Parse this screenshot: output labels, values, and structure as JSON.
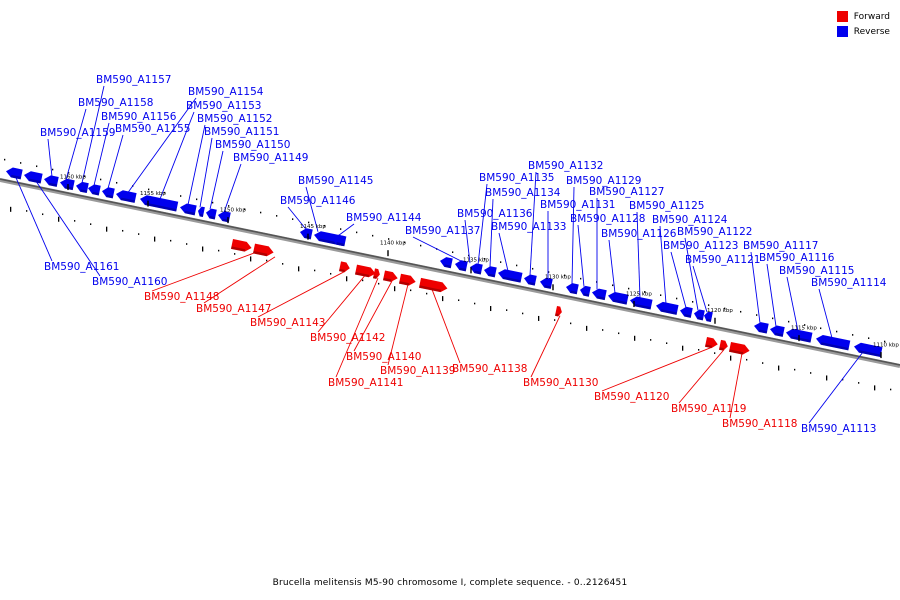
{
  "colors": {
    "forward": "#ee0000",
    "reverse": "#0000ee",
    "line": "#555555"
  },
  "legend": [
    {
      "label": "Forward",
      "color": "#ee0000"
    },
    {
      "label": "Reverse",
      "color": "#0000ee"
    }
  ],
  "caption": "Brucella melitensis M5-90 chromosome I, complete sequence. - 0..2126451",
  "scale_labels": [
    "1160 kbp",
    "1155 kbp",
    "1150 kbp",
    "1145 kbp",
    "1140 kbp",
    "1135 kbp",
    "1130 kbp",
    "1125 kbp",
    "1120 kbp",
    "1115 kbp",
    "1110 kbp"
  ],
  "genes": [
    {
      "name": "BM590_A1161",
      "strand": "reverse"
    },
    {
      "name": "BM590_A1160",
      "strand": "reverse"
    },
    {
      "name": "BM590_A1159",
      "strand": "reverse"
    },
    {
      "name": "BM590_A1158",
      "strand": "reverse"
    },
    {
      "name": "BM590_A1157",
      "strand": "reverse"
    },
    {
      "name": "BM590_A1156",
      "strand": "reverse"
    },
    {
      "name": "BM590_A1155",
      "strand": "reverse"
    },
    {
      "name": "BM590_A1154",
      "strand": "reverse"
    },
    {
      "name": "BM590_A1153",
      "strand": "reverse"
    },
    {
      "name": "BM590_A1152",
      "strand": "reverse"
    },
    {
      "name": "BM590_A1151",
      "strand": "reverse"
    },
    {
      "name": "BM590_A1150",
      "strand": "reverse"
    },
    {
      "name": "BM590_A1149",
      "strand": "reverse"
    },
    {
      "name": "BM590_A1148",
      "strand": "forward"
    },
    {
      "name": "BM590_A1147",
      "strand": "forward"
    },
    {
      "name": "BM590_A1146",
      "strand": "reverse"
    },
    {
      "name": "BM590_A1145",
      "strand": "reverse"
    },
    {
      "name": "BM590_A1144",
      "strand": "reverse"
    },
    {
      "name": "BM590_A1143",
      "strand": "forward"
    },
    {
      "name": "BM590_A1142",
      "strand": "forward"
    },
    {
      "name": "BM590_A1141",
      "strand": "forward"
    },
    {
      "name": "BM590_A1140",
      "strand": "forward"
    },
    {
      "name": "BM590_A1139",
      "strand": "forward"
    },
    {
      "name": "BM590_A1138",
      "strand": "forward"
    },
    {
      "name": "BM590_A1137",
      "strand": "reverse"
    },
    {
      "name": "BM590_A1136",
      "strand": "reverse"
    },
    {
      "name": "BM590_A1135",
      "strand": "reverse"
    },
    {
      "name": "BM590_A1134",
      "strand": "reverse"
    },
    {
      "name": "BM590_A1133",
      "strand": "reverse"
    },
    {
      "name": "BM590_A1132",
      "strand": "reverse"
    },
    {
      "name": "BM590_A1131",
      "strand": "reverse"
    },
    {
      "name": "BM590_A1130",
      "strand": "forward"
    },
    {
      "name": "BM590_A1129",
      "strand": "reverse"
    },
    {
      "name": "BM590_A1128",
      "strand": "reverse"
    },
    {
      "name": "BM590_A1127",
      "strand": "reverse"
    },
    {
      "name": "BM590_A1126",
      "strand": "reverse"
    },
    {
      "name": "BM590_A1125",
      "strand": "reverse"
    },
    {
      "name": "BM590_A1124",
      "strand": "reverse"
    },
    {
      "name": "BM590_A1123",
      "strand": "reverse"
    },
    {
      "name": "BM590_A1122",
      "strand": "reverse"
    },
    {
      "name": "BM590_A1121",
      "strand": "reverse"
    },
    {
      "name": "BM590_A1120",
      "strand": "forward"
    },
    {
      "name": "BM590_A1119",
      "strand": "forward"
    },
    {
      "name": "BM590_A1118",
      "strand": "forward"
    },
    {
      "name": "BM590_A1117",
      "strand": "reverse"
    },
    {
      "name": "BM590_A1116",
      "strand": "reverse"
    },
    {
      "name": "BM590_A1115",
      "strand": "reverse"
    },
    {
      "name": "BM590_A1114",
      "strand": "reverse"
    },
    {
      "name": "BM590_A1113",
      "strand": "reverse"
    }
  ]
}
